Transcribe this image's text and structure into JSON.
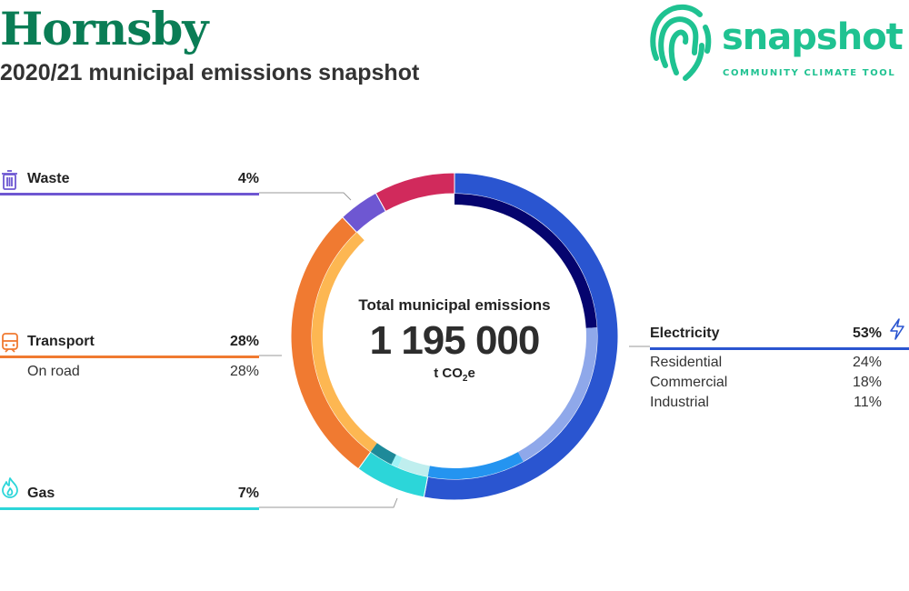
{
  "header": {
    "title": "Hornsby",
    "subtitle": "2020/21 municipal emissions snapshot"
  },
  "logo": {
    "wordmark": "snapshot",
    "tagline": "COMMUNITY CLIMATE TOOL",
    "color": "#1fc291"
  },
  "center": {
    "caption": "Total municipal emissions",
    "value": "1 195 000",
    "unit_prefix": "t CO",
    "unit_sub": "2",
    "unit_suffix": "e"
  },
  "chart_data": {
    "type": "pie",
    "total": "1 195 000",
    "categories": [
      {
        "name": "Electricity",
        "pct": "53%",
        "value": 53,
        "color": "#2a55d0",
        "icon": "lightning-icon",
        "subcategories": [
          {
            "name": "Residential",
            "pct": "24%",
            "value": 24,
            "color": "#05046e"
          },
          {
            "name": "Commercial",
            "pct": "18%",
            "value": 18,
            "color": "#8fa8ea"
          },
          {
            "name": "Industrial",
            "pct": "11%",
            "value": 11,
            "color": "#2494f0"
          }
        ]
      },
      {
        "name": "Gas",
        "pct": "7%",
        "value": 7,
        "color": "#2cd6d9",
        "icon": "flame-icon",
        "subcategories": [
          {
            "name": "",
            "pct": "",
            "value": 3.5,
            "color": "#bfeeee"
          },
          {
            "name": "",
            "pct": "",
            "value": 0.8,
            "color": "#9ff3f6"
          },
          {
            "name": "",
            "pct": "",
            "value": 2.7,
            "color": "#1e8a99"
          }
        ]
      },
      {
        "name": "Transport",
        "pct": "28%",
        "value": 28,
        "color": "#f07a31",
        "icon": "train-icon",
        "subcategories": [
          {
            "name": "On road",
            "pct": "28%",
            "value": 28,
            "color": "#fdb752"
          }
        ]
      },
      {
        "name": "Waste",
        "pct": "4%",
        "value": 4,
        "color": "#6e57d2",
        "icon": "bin-icon",
        "subcategories": []
      },
      {
        "name": "",
        "pct": "",
        "value": 8,
        "color": "#d12a5c",
        "icon": "",
        "subcategories": []
      }
    ]
  }
}
